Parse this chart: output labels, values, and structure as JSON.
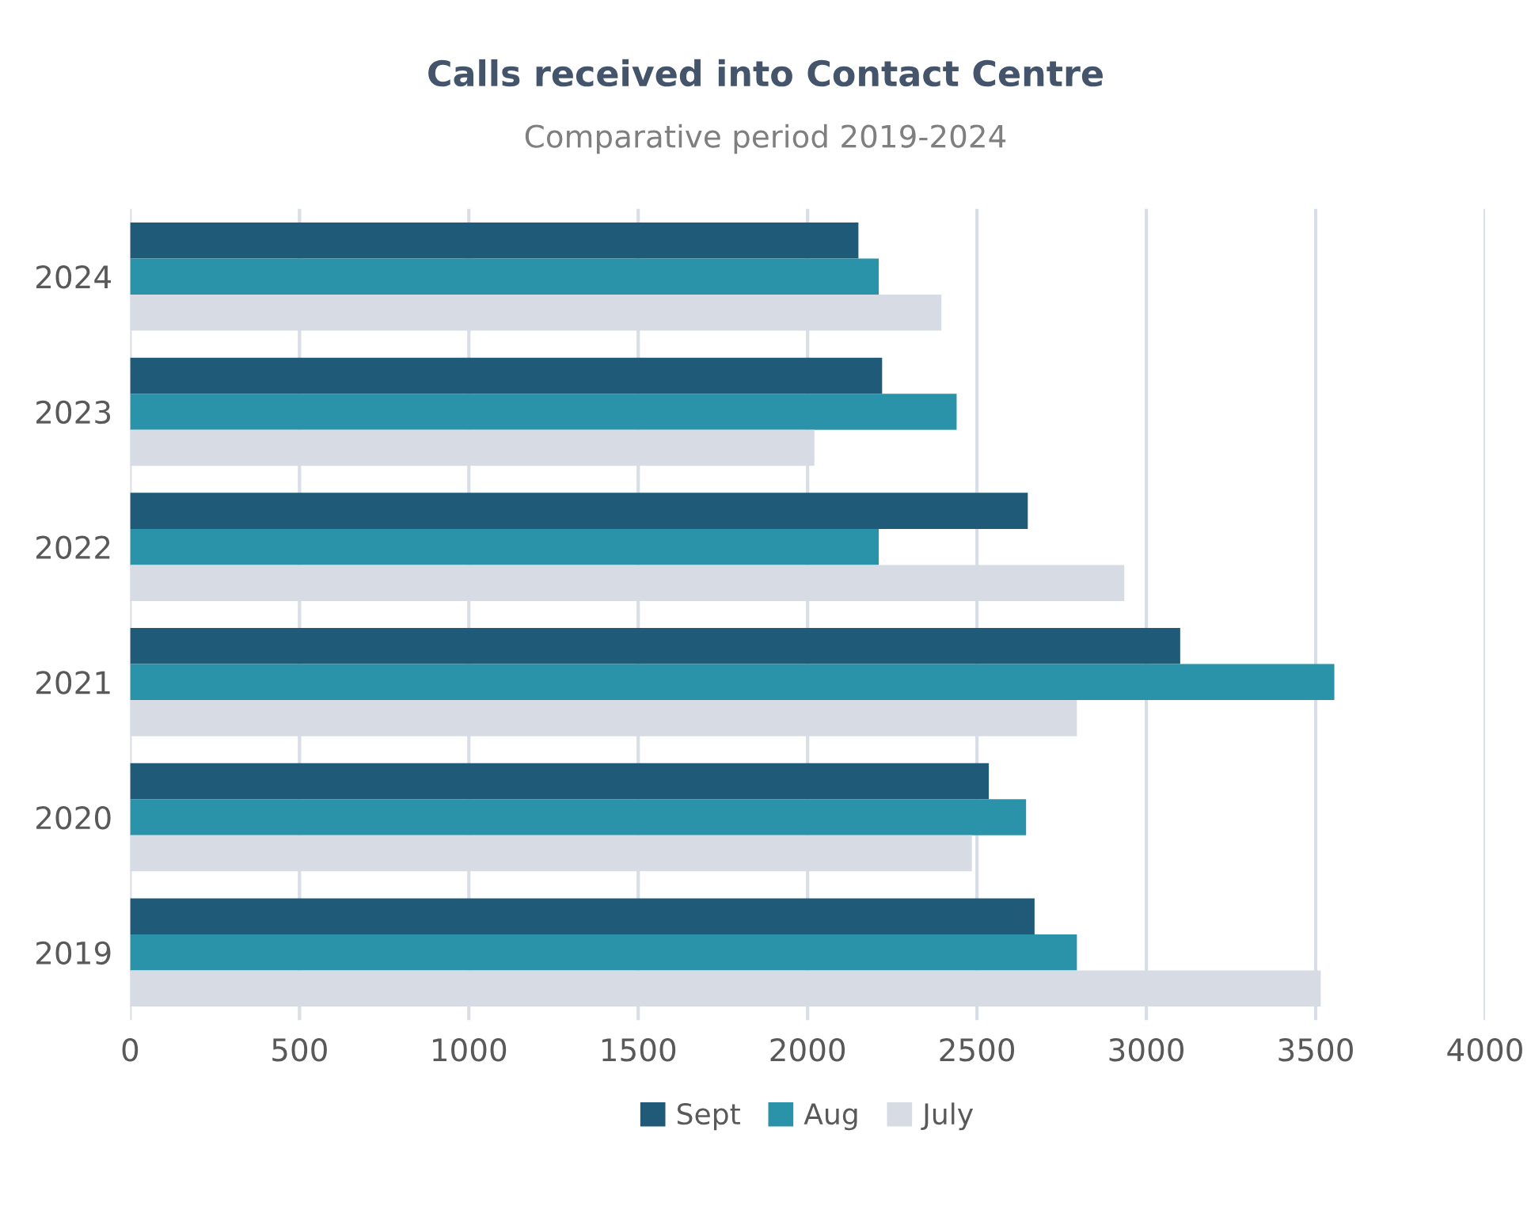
{
  "chart_data": {
    "type": "bar",
    "orientation": "horizontal",
    "title": "Calls received into Contact Centre",
    "subtitle": "Comparative period 2019-2024",
    "categories": [
      "2024",
      "2023",
      "2022",
      "2021",
      "2020",
      "2019"
    ],
    "series": [
      {
        "name": "Sept",
        "color": "#1f5a78",
        "values": [
          2150,
          2220,
          2650,
          3100,
          2535,
          2670
        ]
      },
      {
        "name": "Aug",
        "color": "#2a93aa",
        "values": [
          2210,
          2440,
          2210,
          3555,
          2645,
          2795
        ]
      },
      {
        "name": "July",
        "color": "#d7dce4",
        "values": [
          2395,
          2020,
          2935,
          2795,
          2485,
          3515
        ]
      }
    ],
    "xlim": [
      0,
      4000
    ],
    "xticks": [
      0,
      500,
      1000,
      1500,
      2000,
      2500,
      3000,
      3500,
      4000
    ],
    "grid": "x",
    "legend": "bottom"
  }
}
